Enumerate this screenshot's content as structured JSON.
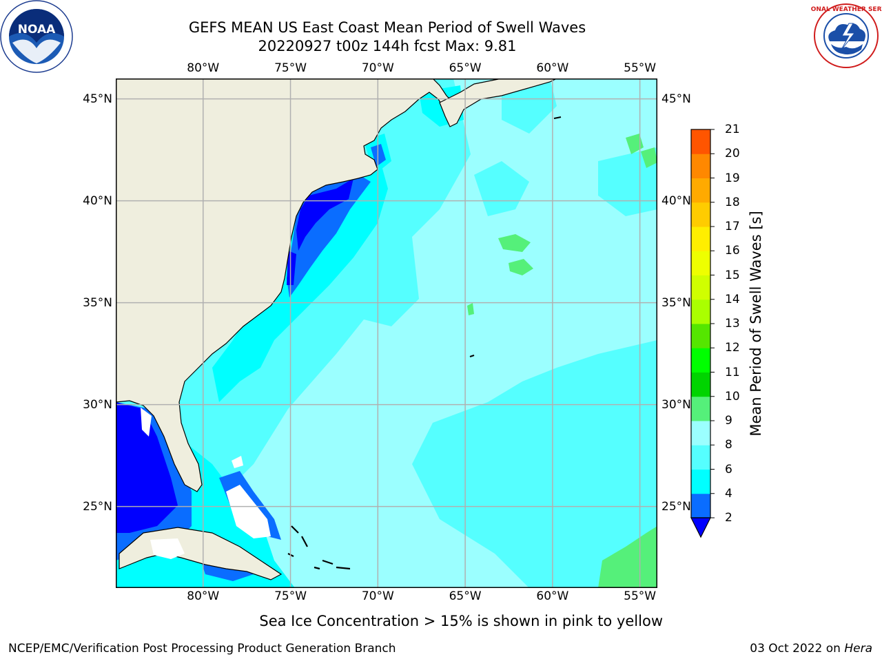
{
  "title": {
    "line1": "GEFS MEAN US East Coast Mean Period of Swell Waves",
    "line2": "20220927 t00z 144h fcst   Max: 9.81"
  },
  "logos": {
    "left": {
      "icon": "noaa-logo",
      "text": "NOAA"
    },
    "right": {
      "icon": "national-weather-service-logo",
      "text": "NATIONAL WEATHER SERVICE"
    }
  },
  "map": {
    "lon_range": [
      -85,
      -54
    ],
    "lat_range": [
      21,
      46
    ],
    "lon_ticks": [
      "80°W",
      "75°W",
      "70°W",
      "65°W",
      "60°W",
      "55°W"
    ],
    "lon_values": [
      -80,
      -75,
      -70,
      -65,
      -60,
      -55
    ],
    "lat_ticks": [
      "45°N",
      "40°N",
      "35°N",
      "30°N",
      "25°N"
    ],
    "lat_values": [
      45,
      40,
      35,
      30,
      25
    ],
    "grid": true,
    "colors": {
      "land": "#efeede",
      "coast": "#000000",
      "grid": "#b0b0b0",
      "period_2_4": "#0000ff",
      "period_4_6": "#0a6dff",
      "period_6_8": "#00ffff",
      "period_8_9": "#55ffff",
      "period_9_10": "#9bffff",
      "period_10_11": "#55f07a"
    }
  },
  "colorbar": {
    "label": "Mean Period of Swell Waves [s]",
    "ticks": [
      "2",
      "4",
      "6",
      "8",
      "9",
      "10",
      "11",
      "12",
      "13",
      "14",
      "15",
      "16",
      "17",
      "18",
      "19",
      "20",
      "21"
    ],
    "colors": [
      "#0a6dff",
      "#00ffff",
      "#55ffff",
      "#9bffff",
      "#55f07a",
      "#00d400",
      "#00ff00",
      "#55e600",
      "#aaff00",
      "#d0ff00",
      "#eeff00",
      "#ffee00",
      "#ffcc00",
      "#ffaa00",
      "#ff8800",
      "#ff5500",
      "#ff2200",
      "#ff0000"
    ],
    "under_color": "#0000ff"
  },
  "caption": "Sea Ice Concentration > 15% is shown in pink to yellow",
  "footer": {
    "left": "NCEP/EMC/Verification Post Processing Product Generation Branch",
    "right_prefix": "03 Oct 2022 on ",
    "right_italic": "Hera"
  }
}
